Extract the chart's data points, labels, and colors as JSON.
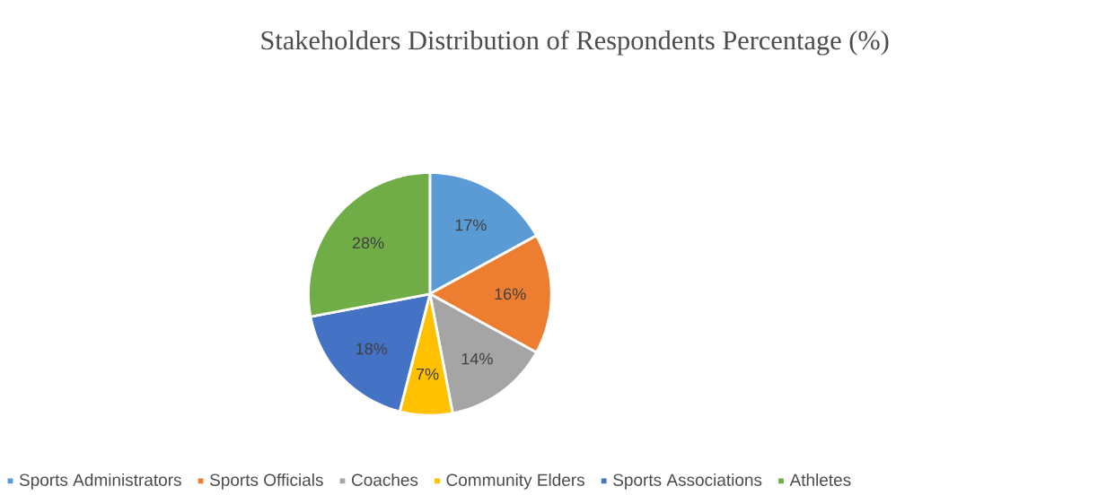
{
  "chart_data": {
    "type": "pie",
    "title": "Stakeholders Distribution of Respondents Percentage (%)",
    "categories": [
      "Sports Administrators",
      "Sports Officials",
      "Coaches",
      "Community Elders",
      "Sports Associations",
      "Athletes"
    ],
    "values": [
      17,
      16,
      14,
      7,
      18,
      28
    ],
    "value_labels": [
      "17%",
      "16%",
      "14%",
      "7%",
      "18%",
      "28%"
    ],
    "colors": [
      "#5b9bd5",
      "#ed7d31",
      "#a5a5a5",
      "#ffc000",
      "#4472c4",
      "#70ad47"
    ],
    "legend": "bottom"
  }
}
